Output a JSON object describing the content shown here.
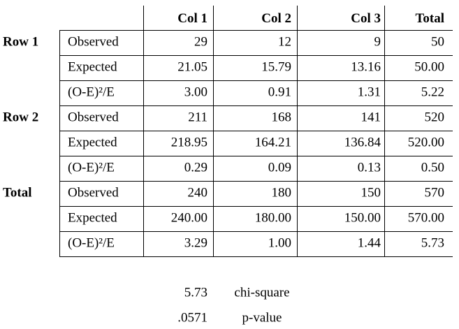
{
  "table": {
    "header": [
      "Col 1",
      "Col 2",
      "Col 3",
      "Total"
    ],
    "groups": [
      {
        "label": "Row 1",
        "rows": [
          {
            "label": "Observed",
            "cells": [
              "29",
              "12",
              "9",
              "50"
            ]
          },
          {
            "label": "Expected",
            "cells": [
              "21.05",
              "15.79",
              "13.16",
              "50.00"
            ]
          },
          {
            "label": "(O-E)²/E",
            "cells": [
              "3.00",
              "0.91",
              "1.31",
              "5.22"
            ]
          }
        ]
      },
      {
        "label": "Row 2",
        "rows": [
          {
            "label": "Observed",
            "cells": [
              "211",
              "168",
              "141",
              "520"
            ]
          },
          {
            "label": "Expected",
            "cells": [
              "218.95",
              "164.21",
              "136.84",
              "520.00"
            ]
          },
          {
            "label": "(O-E)²/E",
            "cells": [
              "0.29",
              "0.09",
              "0.13",
              "0.50"
            ]
          }
        ]
      },
      {
        "label": "Total",
        "rows": [
          {
            "label": "Observed",
            "cells": [
              "240",
              "180",
              "150",
              "570"
            ]
          },
          {
            "label": "Expected",
            "cells": [
              "240.00",
              "180.00",
              "150.00",
              "570.00"
            ]
          },
          {
            "label": "(O-E)²/E",
            "cells": [
              "3.29",
              "1.00",
              "1.44",
              "5.73"
            ]
          }
        ]
      }
    ]
  },
  "summary": [
    {
      "value": "5.73",
      "label": "chi-square"
    },
    {
      "value": ".0571",
      "label": "p-value"
    }
  ]
}
